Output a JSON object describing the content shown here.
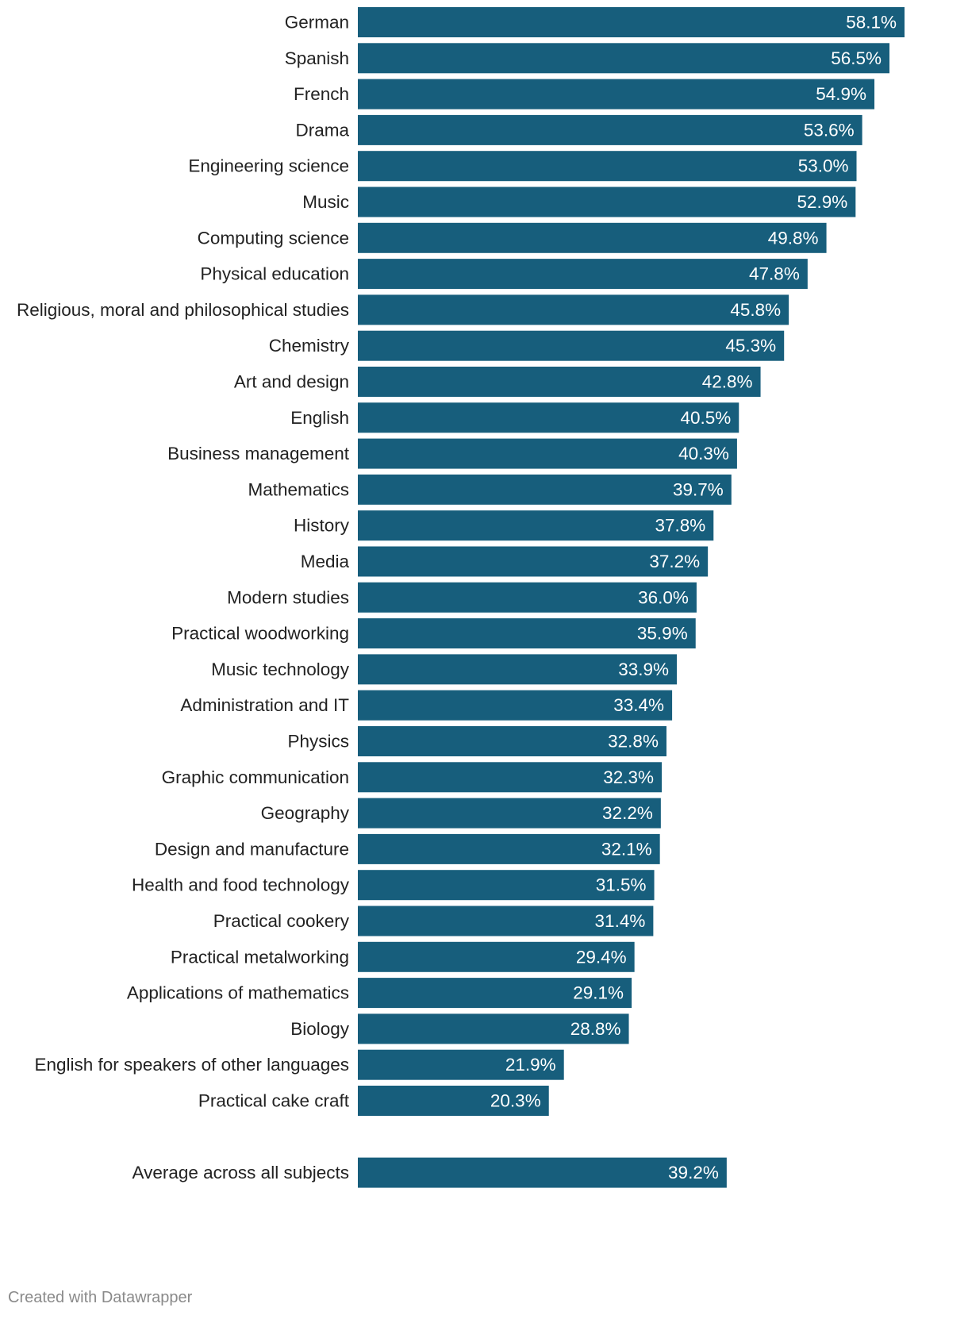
{
  "chart_data": {
    "type": "bar",
    "orientation": "horizontal",
    "bar_color": "#175e7c",
    "value_suffix": "%",
    "categories": [
      "German",
      "Spanish",
      "French",
      "Drama",
      "Engineering science",
      "Music",
      "Computing science",
      "Physical education",
      "Religious, moral and philosophical studies",
      "Chemistry",
      "Art and design",
      "English",
      "Business management",
      "Mathematics",
      "History",
      "Media",
      "Modern studies",
      "Practical woodworking",
      "Music technology",
      "Administration and IT",
      "Physics",
      "Graphic communication",
      "Geography",
      "Design and manufacture",
      "Health and food technology",
      "Practical cookery",
      "Practical metalworking",
      "Applications of mathematics",
      "Biology",
      "English for speakers of other languages",
      "Practical cake craft"
    ],
    "values": [
      58.1,
      56.5,
      54.9,
      53.6,
      53.0,
      52.9,
      49.8,
      47.8,
      45.8,
      45.3,
      42.8,
      40.5,
      40.3,
      39.7,
      37.8,
      37.2,
      36.0,
      35.9,
      33.9,
      33.4,
      32.8,
      32.3,
      32.2,
      32.1,
      31.5,
      31.4,
      29.4,
      29.1,
      28.8,
      21.9,
      20.3
    ],
    "value_labels": [
      "58.1%",
      "56.5%",
      "54.9%",
      "53.6%",
      "53.0%",
      "52.9%",
      "49.8%",
      "47.8%",
      "45.8%",
      "45.3%",
      "42.8%",
      "40.5%",
      "40.3%",
      "39.7%",
      "37.8%",
      "37.2%",
      "36.0%",
      "35.9%",
      "33.9%",
      "33.4%",
      "32.8%",
      "32.3%",
      "32.2%",
      "32.1%",
      "31.5%",
      "31.4%",
      "29.4%",
      "29.1%",
      "28.8%",
      "21.9%",
      "20.3%"
    ],
    "summary": {
      "label": "Average across all subjects",
      "value": 39.2,
      "value_label": "39.2%"
    },
    "xlim": [
      0,
      58.1
    ]
  },
  "footer": {
    "credit": "Created with Datawrapper"
  }
}
